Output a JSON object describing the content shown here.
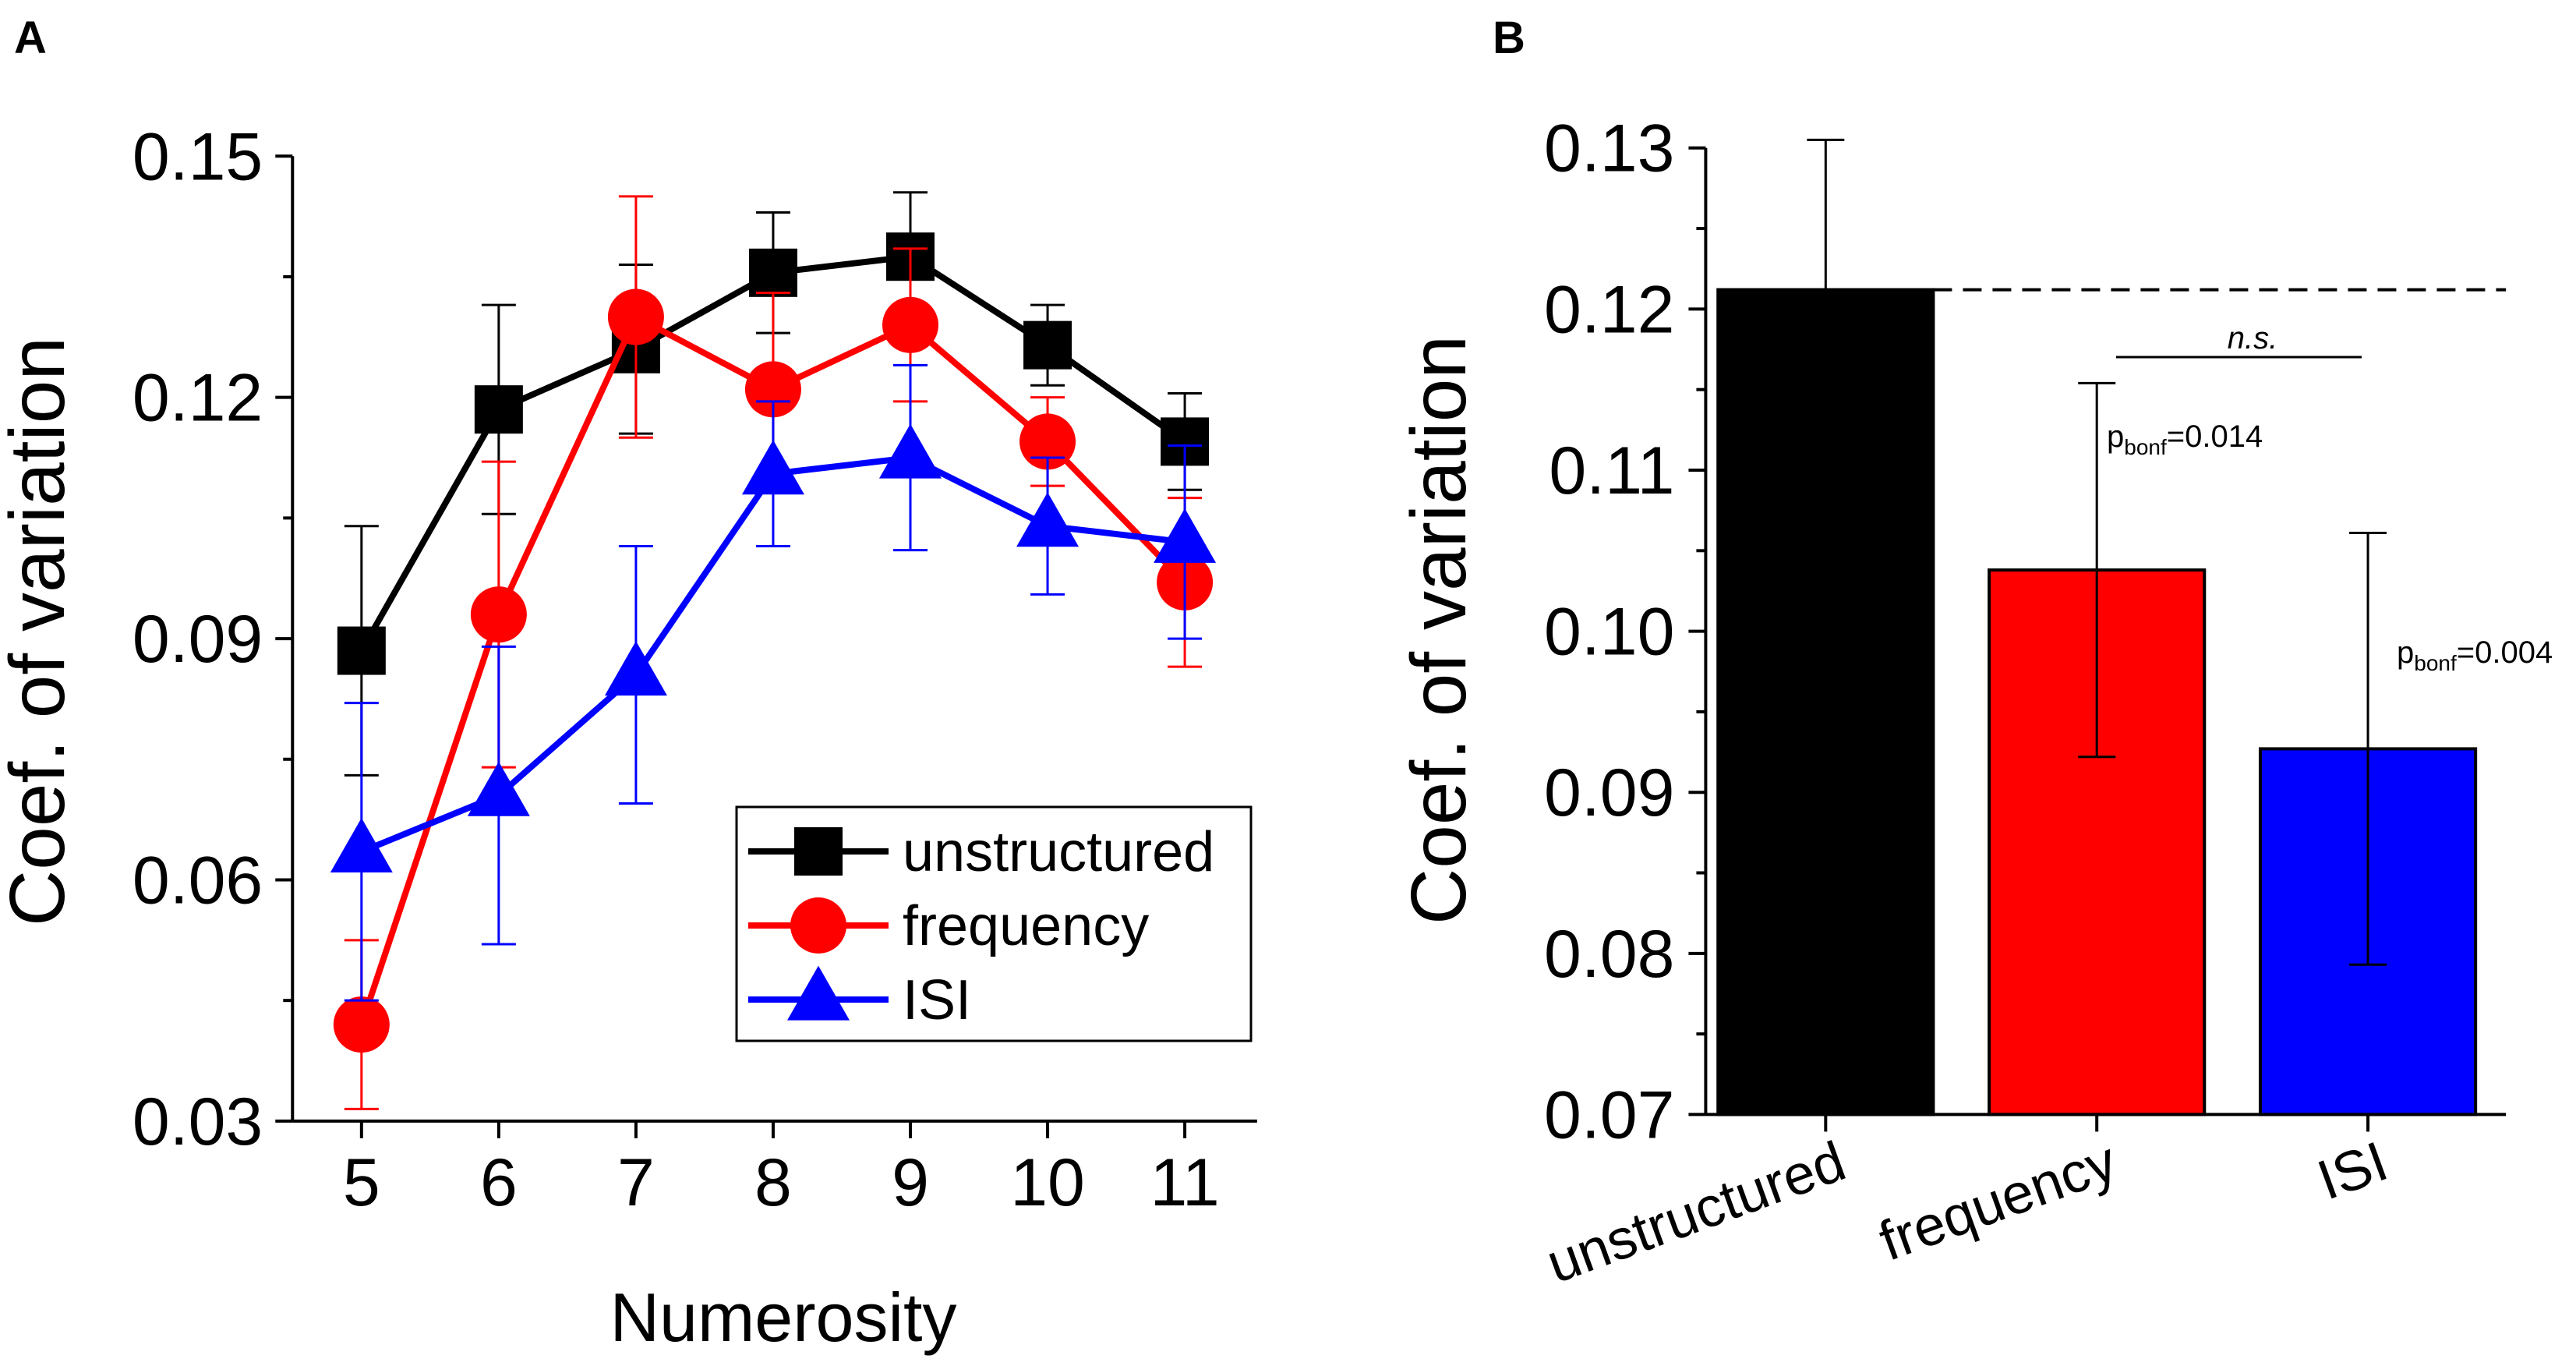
{
  "chart_data": [
    {
      "type": "line",
      "panel_label": "A",
      "xlabel": "Numerosity",
      "ylabel": "Coef. of variation",
      "x": [
        5,
        6,
        7,
        8,
        9,
        10,
        11
      ],
      "xlim": [
        4.5,
        11.5
      ],
      "ylim": [
        0.03,
        0.15
      ],
      "yticks": [
        "0.03",
        "0.06",
        "0.09",
        "0.12",
        "0.15"
      ],
      "legend_position": "bottom-right",
      "series": [
        {
          "name": "unstructured",
          "marker": "square",
          "color": "#000000",
          "values": [
            0.0885,
            0.1185,
            0.126,
            0.1355,
            0.1375,
            0.1265,
            0.1145
          ],
          "errors": [
            0.0155,
            0.013,
            0.0105,
            0.0075,
            0.008,
            0.005,
            0.006
          ]
        },
        {
          "name": "frequency",
          "marker": "circle",
          "color": "#ff0000",
          "values": [
            0.042,
            0.093,
            0.13,
            0.121,
            0.129,
            0.1145,
            0.097
          ],
          "errors": [
            0.0105,
            0.019,
            0.015,
            0.012,
            0.0095,
            0.0055,
            0.0105
          ]
        },
        {
          "name": "ISI",
          "marker": "triangle",
          "color": "#0000ff",
          "values": [
            0.0635,
            0.0705,
            0.0855,
            0.1105,
            0.1125,
            0.104,
            0.102
          ],
          "errors": [
            0.0185,
            0.0185,
            0.016,
            0.009,
            0.0115,
            0.0085,
            0.012
          ]
        }
      ]
    },
    {
      "type": "bar",
      "panel_label": "B",
      "ylabel": "Coef. of variation",
      "categories": [
        "unstructured",
        "frequency",
        "ISI"
      ],
      "values": [
        0.1212,
        0.1038,
        0.0927
      ],
      "errors": [
        0.0093,
        0.0116,
        0.0134
      ],
      "colors": [
        "#000000",
        "#ff0000",
        "#0000ff"
      ],
      "ylim": [
        0.07,
        0.13
      ],
      "yticks": [
        "0.07",
        "0.08",
        "0.09",
        "0.10",
        "0.11",
        "0.12",
        "0.13"
      ],
      "reference_line": 0.1212,
      "annotations": {
        "ns": "n.s.",
        "p_frequency": {
          "p": "p",
          "sub": "bonf",
          "value": "=0.014"
        },
        "p_isi": {
          "p": "p",
          "sub": "bonf",
          "value": "=0.004"
        }
      }
    }
  ]
}
